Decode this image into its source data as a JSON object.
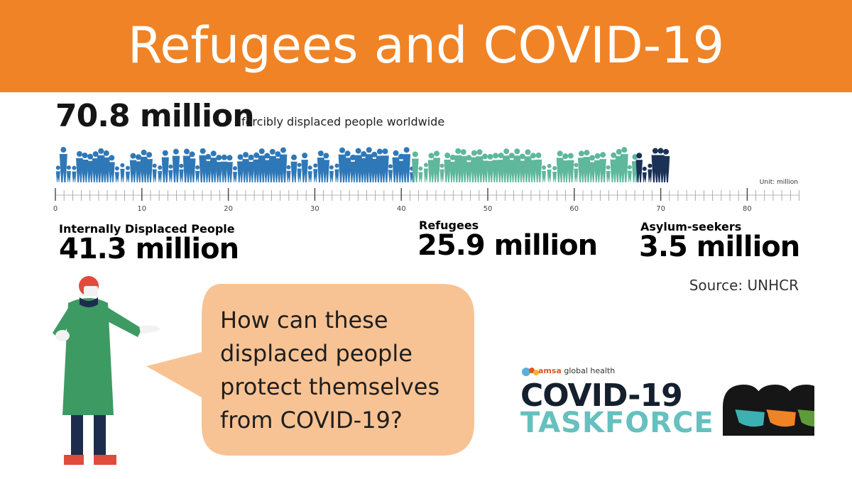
{
  "header": {
    "title": "Refugees and COVID-19"
  },
  "headline": {
    "value": "70.8 million",
    "label": "forcibly displaced people worldwide"
  },
  "chart_data": {
    "type": "bar",
    "orientation": "horizontal-stacked",
    "xlabel": "",
    "ylabel": "",
    "unit_label": "Unit: million",
    "xlim": [
      0,
      86
    ],
    "tick_labels": [
      "0",
      "10",
      "20",
      "30",
      "40",
      "50",
      "60",
      "70",
      "80"
    ],
    "minor_tick_step": 1,
    "total": 70.8,
    "series": [
      {
        "name": "Internally Displaced People",
        "value": 41.3,
        "display": "41.3 million",
        "color": "#2f78b8"
      },
      {
        "name": "Refugees",
        "value": 25.9,
        "display": "25.9 million",
        "color": "#5fb79c"
      },
      {
        "name": "Asylum-seekers",
        "value": 3.5,
        "display": "3.5 million",
        "color": "#1c3156"
      }
    ]
  },
  "source": "Source: UNHCR",
  "bubble": {
    "text": "How can these displaced people protect themselves from COVID-19?",
    "color": "#f8c394"
  },
  "logo": {
    "brand_prefix": "amsa",
    "brand_suffix": " global health",
    "line1": "COVID-19",
    "line2": "TASKFORCE",
    "mask_colors": [
      "#3bb1b2",
      "#f08325",
      "#5e9b3b"
    ]
  }
}
